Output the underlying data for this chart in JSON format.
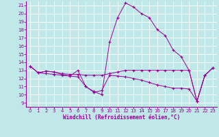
{
  "xlabel": "Windchill (Refroidissement éolien,°C)",
  "background_color": "#c0e8e8",
  "line_color": "#990099",
  "hours": [
    0,
    1,
    2,
    3,
    4,
    5,
    6,
    7,
    8,
    9,
    10,
    11,
    12,
    13,
    14,
    15,
    16,
    17,
    18,
    19,
    20,
    21,
    22,
    23
  ],
  "curve1": [
    13.5,
    12.7,
    12.9,
    12.8,
    12.5,
    12.3,
    13.0,
    11.0,
    10.4,
    10.0,
    16.5,
    19.5,
    21.3,
    20.8,
    20.0,
    19.5,
    18.0,
    17.3,
    15.5,
    14.7,
    13.0,
    9.2,
    12.4,
    13.3
  ],
  "curve2": [
    13.5,
    12.7,
    12.9,
    12.8,
    12.6,
    12.5,
    12.5,
    12.4,
    12.4,
    12.4,
    12.6,
    12.8,
    13.0,
    13.0,
    13.0,
    13.0,
    13.0,
    13.0,
    13.0,
    13.0,
    13.0,
    9.2,
    12.4,
    13.3
  ],
  "curve3": [
    13.5,
    12.7,
    12.6,
    12.5,
    12.4,
    12.3,
    12.2,
    11.0,
    10.3,
    10.5,
    12.4,
    12.3,
    12.2,
    12.0,
    11.8,
    11.5,
    11.2,
    11.0,
    10.8,
    10.8,
    10.7,
    9.2,
    12.4,
    13.3
  ],
  "ylim_min": 9,
  "ylim_max": 21,
  "xlim_min": 0,
  "xlim_max": 23,
  "yticks": [
    9,
    10,
    11,
    12,
    13,
    14,
    15,
    16,
    17,
    18,
    19,
    20,
    21
  ],
  "xticks": [
    0,
    1,
    2,
    3,
    4,
    5,
    6,
    7,
    8,
    9,
    10,
    11,
    12,
    13,
    14,
    15,
    16,
    17,
    18,
    19,
    20,
    21,
    22,
    23
  ],
  "tick_fontsize": 5,
  "xlabel_fontsize": 5.5
}
